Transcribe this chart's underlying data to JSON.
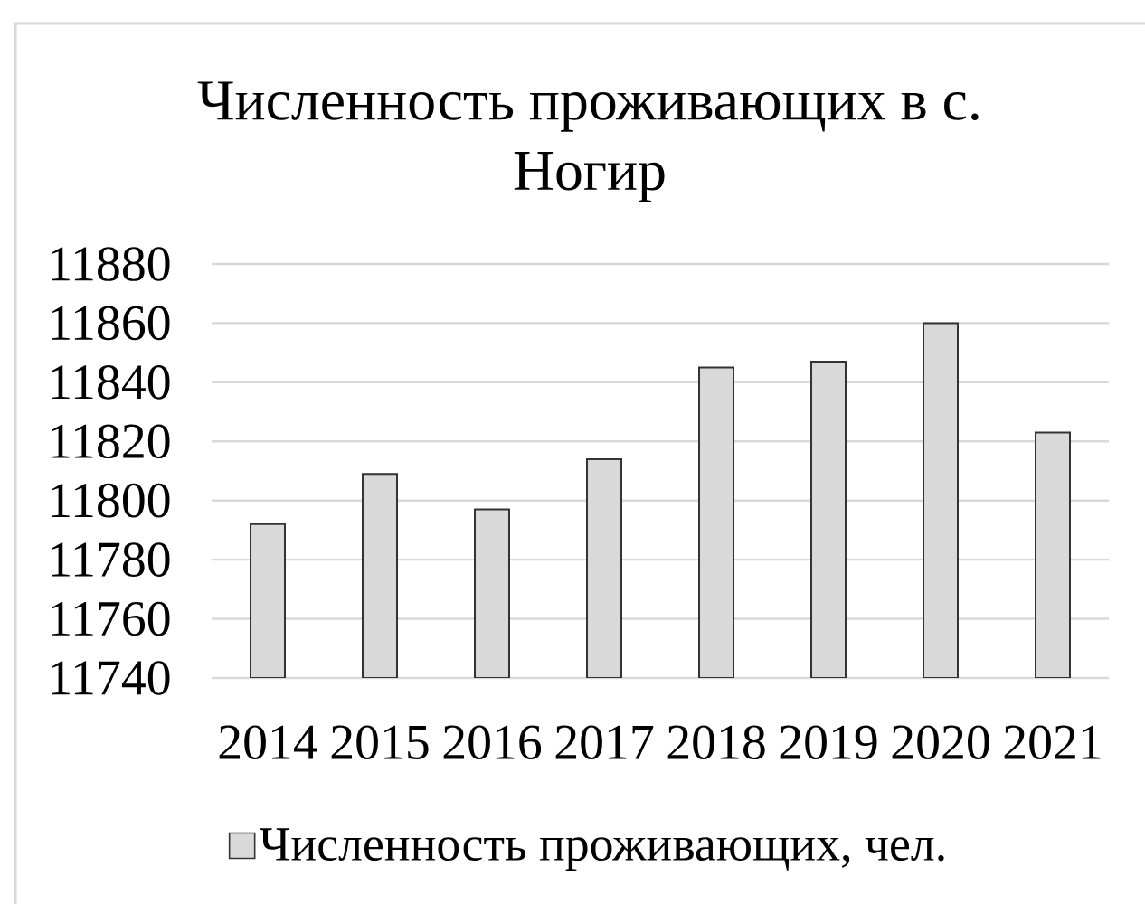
{
  "chart_data": {
    "type": "bar",
    "title": "Численность проживающих в с. Ногир",
    "categories": [
      "2014",
      "2015",
      "2016",
      "2017",
      "2018",
      "2019",
      "2020",
      "2021"
    ],
    "series": [
      {
        "name": "Численность проживающих, чел.",
        "color": "#d9d9d9",
        "values": [
          11792,
          11809,
          11797,
          11814,
          11845,
          11847,
          11860,
          11823
        ]
      }
    ],
    "ylim": [
      11740,
      11880
    ],
    "yticks": [
      11740,
      11760,
      11780,
      11800,
      11820,
      11840,
      11860,
      11880
    ],
    "grid": "y",
    "legend": "bottom"
  }
}
